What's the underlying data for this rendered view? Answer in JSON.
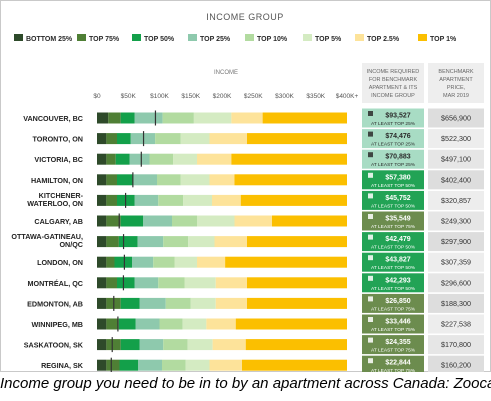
{
  "legend_title": "INCOME GROUP",
  "caption": "Income group you need to be in to by an apartment across Canada: Zoocasa",
  "column_headers": {
    "income": "INCOME",
    "required": [
      "INCOME REQUIRED",
      "FOR BENCHMARK",
      "APARTMENT & ITS",
      "INCOME GROUP"
    ],
    "price": [
      "BENCHMARK",
      "APARTMENT",
      "PRICE,",
      "MAR 2019"
    ]
  },
  "chart_data": {
    "type": "bar",
    "orientation": "horizontal",
    "stacked": true,
    "xlabel": "INCOME",
    "x_ticks": [
      "$0",
      "$50K",
      "$100K",
      "$150K",
      "$200K",
      "$250K",
      "$300K",
      "$350K",
      "$400K+"
    ],
    "xlim": [
      0,
      400000
    ],
    "legend": [
      {
        "label": "BOTTOM 25%",
        "color": "#2e4a2a"
      },
      {
        "label": "TOP 75%",
        "color": "#4f7f35"
      },
      {
        "label": "TOP 50%",
        "color": "#13a04a"
      },
      {
        "label": "TOP 25%",
        "color": "#8ec9ad"
      },
      {
        "label": "TOP 10%",
        "color": "#b2dba0"
      },
      {
        "label": "TOP 5%",
        "color": "#d4ebc2"
      },
      {
        "label": "TOP 2.5%",
        "color": "#fde39a"
      },
      {
        "label": "TOP 1%",
        "color": "#fbbf00"
      }
    ],
    "categories": [
      "VANCOUVER, BC",
      "TORONTO, ON",
      "VICTORIA, BC",
      "HAMILTON, ON",
      "KITCHENER-WATERLOO, ON",
      "CALGARY, AB",
      "OTTAWA-GATINEAU, ON/QC",
      "LONDON, ON",
      "MONTRÉAL, QC",
      "EDMONTON, AB",
      "WINNIPEG, MB",
      "SASKATOON, SK",
      "REGINA, SK"
    ],
    "segment_bounds": [
      [
        18000,
        38000,
        60000,
        105000,
        155000,
        215000,
        265000,
        400000
      ],
      [
        15000,
        32000,
        54000,
        93000,
        134000,
        180000,
        240000,
        400000
      ],
      [
        15000,
        30000,
        52000,
        84000,
        122000,
        160000,
        215000,
        400000
      ],
      [
        15000,
        32000,
        58000,
        96000,
        134000,
        180000,
        220000,
        400000
      ],
      [
        15000,
        32000,
        60000,
        98000,
        138000,
        184000,
        230000,
        400000
      ],
      [
        15000,
        38000,
        74000,
        120000,
        160000,
        220000,
        280000,
        400000
      ],
      [
        15000,
        35000,
        65000,
        106000,
        146000,
        188000,
        240000,
        400000
      ],
      [
        15000,
        28000,
        56000,
        90000,
        124000,
        160000,
        205000,
        400000
      ],
      [
        15000,
        32000,
        60000,
        98000,
        140000,
        190000,
        240000,
        400000
      ],
      [
        15000,
        38000,
        68000,
        110000,
        150000,
        190000,
        240000,
        400000
      ],
      [
        15000,
        35000,
        62000,
        100000,
        137000,
        175000,
        222000,
        400000
      ],
      [
        15000,
        38000,
        68000,
        106000,
        145000,
        185000,
        238000,
        400000
      ],
      [
        15000,
        36000,
        66000,
        104000,
        142000,
        180000,
        232000,
        400000
      ]
    ],
    "required_income": [
      "$93,527",
      "$74,476",
      "$70,883",
      "$57,380",
      "$45,752",
      "$35,549",
      "$42,479",
      "$43,827",
      "$42,293",
      "$26,850",
      "$33,446",
      "$24,355",
      "$22,844"
    ],
    "required_income_values": [
      93527,
      74476,
      70883,
      57380,
      45752,
      35549,
      42479,
      43827,
      42293,
      26850,
      33446,
      24355,
      22844
    ],
    "required_group": [
      "AT LEAST TOP 25%",
      "AT LEAST TOP 25%",
      "AT LEAST TOP 25%",
      "AT LEAST TOP 50%",
      "AT LEAST TOP 50%",
      "AT LEAST TOP 75%",
      "AT LEAST TOP 50%",
      "AT LEAST TOP 50%",
      "AT LEAST TOP 50%",
      "AT LEAST TOP 75%",
      "AT LEAST TOP 75%",
      "AT LEAST TOP 75%",
      "AT LEAST TOP 75%"
    ],
    "group_colors": {
      "AT LEAST TOP 25%": "#a8dcc4",
      "AT LEAST TOP 50%": "#22a355",
      "AT LEAST TOP 75%": "#6c8c4e"
    },
    "benchmark_price": [
      "$656,900",
      "$522,300",
      "$497,100",
      "$402,400",
      "$320,857",
      "$249,300",
      "$297,900",
      "$307,359",
      "$296,600",
      "$188,300",
      "$227,538",
      "$170,800",
      "$160,200"
    ]
  }
}
